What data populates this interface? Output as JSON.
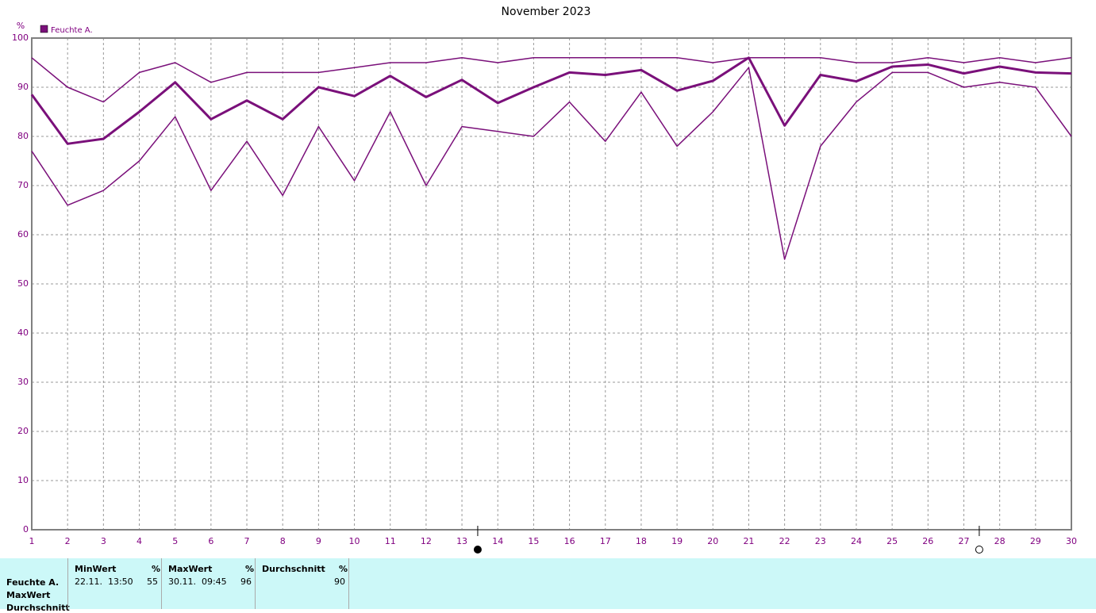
{
  "chart_data": {
    "type": "line",
    "title": "November 2023",
    "y_label": "%",
    "legend": "Feuchte A.",
    "x": [
      1,
      2,
      3,
      4,
      5,
      6,
      7,
      8,
      9,
      10,
      11,
      12,
      13,
      14,
      15,
      16,
      17,
      18,
      19,
      20,
      21,
      22,
      23,
      24,
      25,
      26,
      27,
      28,
      29,
      30
    ],
    "xlim": [
      1,
      30
    ],
    "xticks": [
      1,
      2,
      3,
      4,
      5,
      6,
      7,
      8,
      9,
      10,
      11,
      12,
      13,
      14,
      15,
      16,
      17,
      18,
      19,
      20,
      21,
      22,
      23,
      24,
      25,
      26,
      27,
      28,
      29,
      30
    ],
    "ylim": [
      0,
      100
    ],
    "yticks": [
      0,
      10,
      20,
      30,
      40,
      50,
      60,
      70,
      80,
      90,
      100
    ],
    "grid": true,
    "series": [
      {
        "color": "#7a107a",
        "width": 1.5,
        "values": [
          96,
          90,
          87,
          93,
          95,
          91,
          93,
          93,
          93,
          94,
          95,
          95,
          96,
          95,
          96,
          96,
          96,
          96,
          96,
          95,
          96,
          96,
          96,
          95,
          95,
          96,
          95,
          96,
          95,
          96
        ]
      },
      {
        "color": "#7a107a",
        "width": 3,
        "values": [
          88.5,
          78.5,
          79.5,
          85,
          91,
          83.5,
          87.3,
          83.5,
          90,
          88.2,
          92.3,
          88,
          91.5,
          86.8,
          90,
          93,
          92.5,
          93.5,
          89.3,
          91.3,
          96,
          82.2,
          92.5,
          91.2,
          94.2,
          94.6,
          92.8,
          94.2,
          93,
          92.8
        ]
      },
      {
        "color": "#7a107a",
        "width": 1.5,
        "values": [
          77,
          66,
          69,
          75,
          84,
          69,
          79,
          68,
          82,
          71,
          85,
          70,
          82,
          81,
          80,
          87,
          79,
          89,
          78,
          85,
          94,
          55,
          78,
          87,
          93,
          93,
          90,
          91,
          90,
          80
        ]
      }
    ],
    "moon_phases": [
      {
        "x": 13.44,
        "filled": true
      },
      {
        "x": 27.43,
        "filled": false
      }
    ]
  },
  "table": {
    "row_labels": [
      "Feuchte A.",
      "MaxWert",
      "Durchschnitt"
    ],
    "columns": [
      {
        "header": "MinWert",
        "unit": "%",
        "time": "22.11.  13:50",
        "value": "55"
      },
      {
        "header": "MaxWert",
        "unit": "%",
        "time": "30.11.  09:45",
        "value": "96"
      },
      {
        "header": "Durchschnitt",
        "unit": "%",
        "value": "90"
      }
    ]
  }
}
